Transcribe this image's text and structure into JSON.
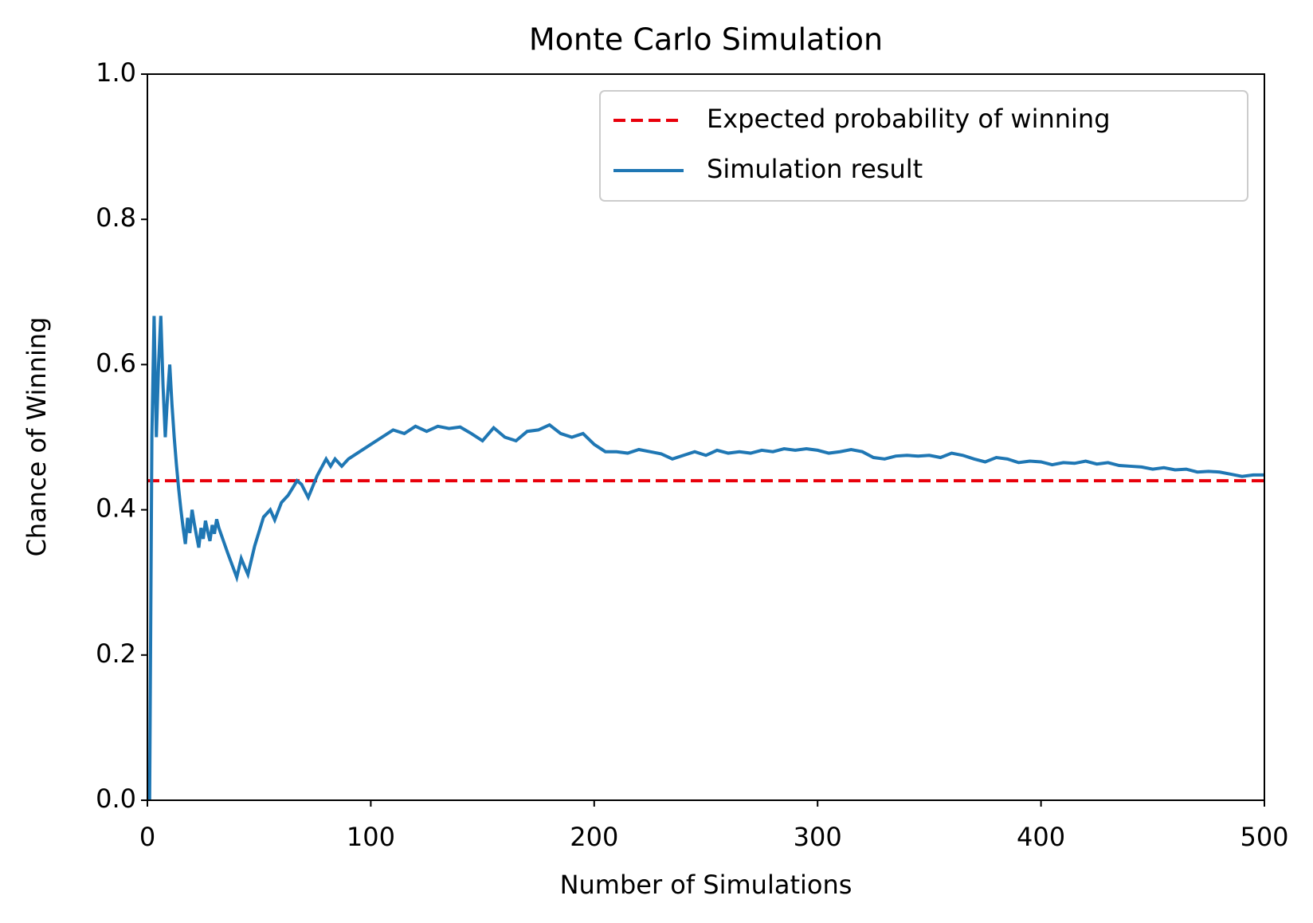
{
  "chart_data": {
    "type": "line",
    "title": "Monte Carlo Simulation",
    "x_label": "Number of Simulations",
    "y_label": "Chance of Winning",
    "xlim": [
      0,
      500
    ],
    "ylim": [
      0,
      1
    ],
    "xticks": [
      0,
      100,
      200,
      300,
      400,
      500
    ],
    "yticks": [
      {
        "value": 0,
        "label": "0.0"
      },
      {
        "value": 0.2,
        "label": "0.2"
      },
      {
        "value": 0.4,
        "label": "0.4"
      },
      {
        "value": 0.6,
        "label": "0.6"
      },
      {
        "value": 0.8,
        "label": "0.8"
      },
      {
        "value": 1,
        "label": "1.0"
      }
    ],
    "grid": false,
    "legend": "upper right",
    "series": [
      {
        "name": "Expected probability of winning",
        "color": "#e8000b",
        "dashed": true,
        "x": [
          0,
          500
        ],
        "values": [
          0.44,
          0.44
        ]
      },
      {
        "name": "Simulation result",
        "color": "#1f77b4",
        "dashed": false,
        "x": [
          1,
          2,
          3,
          4,
          5,
          6,
          7,
          8,
          9,
          10,
          11,
          12,
          13,
          14,
          15,
          16,
          17,
          18,
          19,
          20,
          21,
          22,
          23,
          24,
          25,
          26,
          27,
          28,
          29,
          30,
          31,
          32,
          36,
          40,
          42,
          44,
          45,
          48,
          52,
          55,
          57,
          60,
          63,
          67,
          69,
          72,
          76,
          80,
          82,
          84,
          87,
          90,
          95,
          100,
          105,
          110,
          115,
          120,
          125,
          130,
          135,
          140,
          145,
          150,
          155,
          160,
          165,
          170,
          175,
          180,
          185,
          190,
          195,
          200,
          205,
          210,
          215,
          220,
          225,
          230,
          235,
          240,
          245,
          250,
          255,
          260,
          265,
          270,
          275,
          280,
          285,
          290,
          295,
          300,
          305,
          310,
          315,
          320,
          325,
          330,
          335,
          340,
          345,
          350,
          355,
          360,
          365,
          370,
          375,
          380,
          385,
          390,
          395,
          400,
          405,
          410,
          415,
          420,
          425,
          430,
          435,
          440,
          445,
          450,
          455,
          460,
          465,
          470,
          475,
          480,
          485,
          490,
          495,
          500
        ],
        "values": [
          0,
          0.5,
          0.667,
          0.5,
          0.6,
          0.667,
          0.571,
          0.5,
          0.556,
          0.6,
          0.545,
          0.5,
          0.462,
          0.429,
          0.4,
          0.375,
          0.353,
          0.389,
          0.368,
          0.4,
          0.381,
          0.364,
          0.348,
          0.375,
          0.36,
          0.385,
          0.37,
          0.357,
          0.379,
          0.367,
          0.387,
          0.375,
          0.34,
          0.307,
          0.333,
          0.318,
          0.311,
          0.35,
          0.39,
          0.4,
          0.386,
          0.41,
          0.42,
          0.44,
          0.435,
          0.417,
          0.447,
          0.47,
          0.46,
          0.47,
          0.46,
          0.47,
          0.48,
          0.49,
          0.5,
          0.51,
          0.505,
          0.515,
          0.508,
          0.515,
          0.512,
          0.514,
          0.505,
          0.495,
          0.513,
          0.5,
          0.495,
          0.508,
          0.51,
          0.517,
          0.505,
          0.5,
          0.505,
          0.49,
          0.48,
          0.48,
          0.478,
          0.483,
          0.48,
          0.477,
          0.47,
          0.475,
          0.48,
          0.475,
          0.482,
          0.478,
          0.48,
          0.478,
          0.482,
          0.48,
          0.484,
          0.482,
          0.484,
          0.482,
          0.478,
          0.48,
          0.483,
          0.48,
          0.472,
          0.47,
          0.474,
          0.475,
          0.474,
          0.475,
          0.472,
          0.478,
          0.475,
          0.47,
          0.466,
          0.472,
          0.47,
          0.465,
          0.467,
          0.466,
          0.462,
          0.465,
          0.464,
          0.467,
          0.463,
          0.465,
          0.461,
          0.46,
          0.459,
          0.456,
          0.458,
          0.455,
          0.456,
          0.452,
          0.453,
          0.452,
          0.449,
          0.446,
          0.448,
          0.448
        ]
      }
    ]
  }
}
